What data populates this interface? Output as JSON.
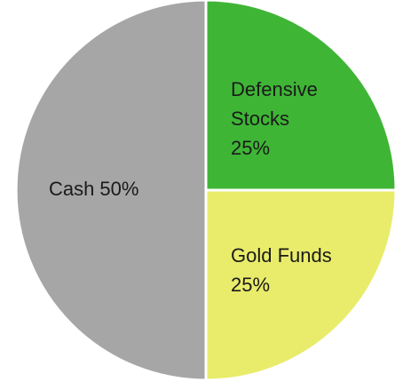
{
  "chart_data": {
    "type": "pie",
    "categories": [
      "Defensive Stocks",
      "Gold Funds",
      "Cash"
    ],
    "values": [
      25,
      25,
      50
    ],
    "value_labels": [
      "25%",
      "25%",
      "50%"
    ],
    "colors": [
      "#3fb536",
      "#e9ec6b",
      "#a6a6a6"
    ]
  }
}
